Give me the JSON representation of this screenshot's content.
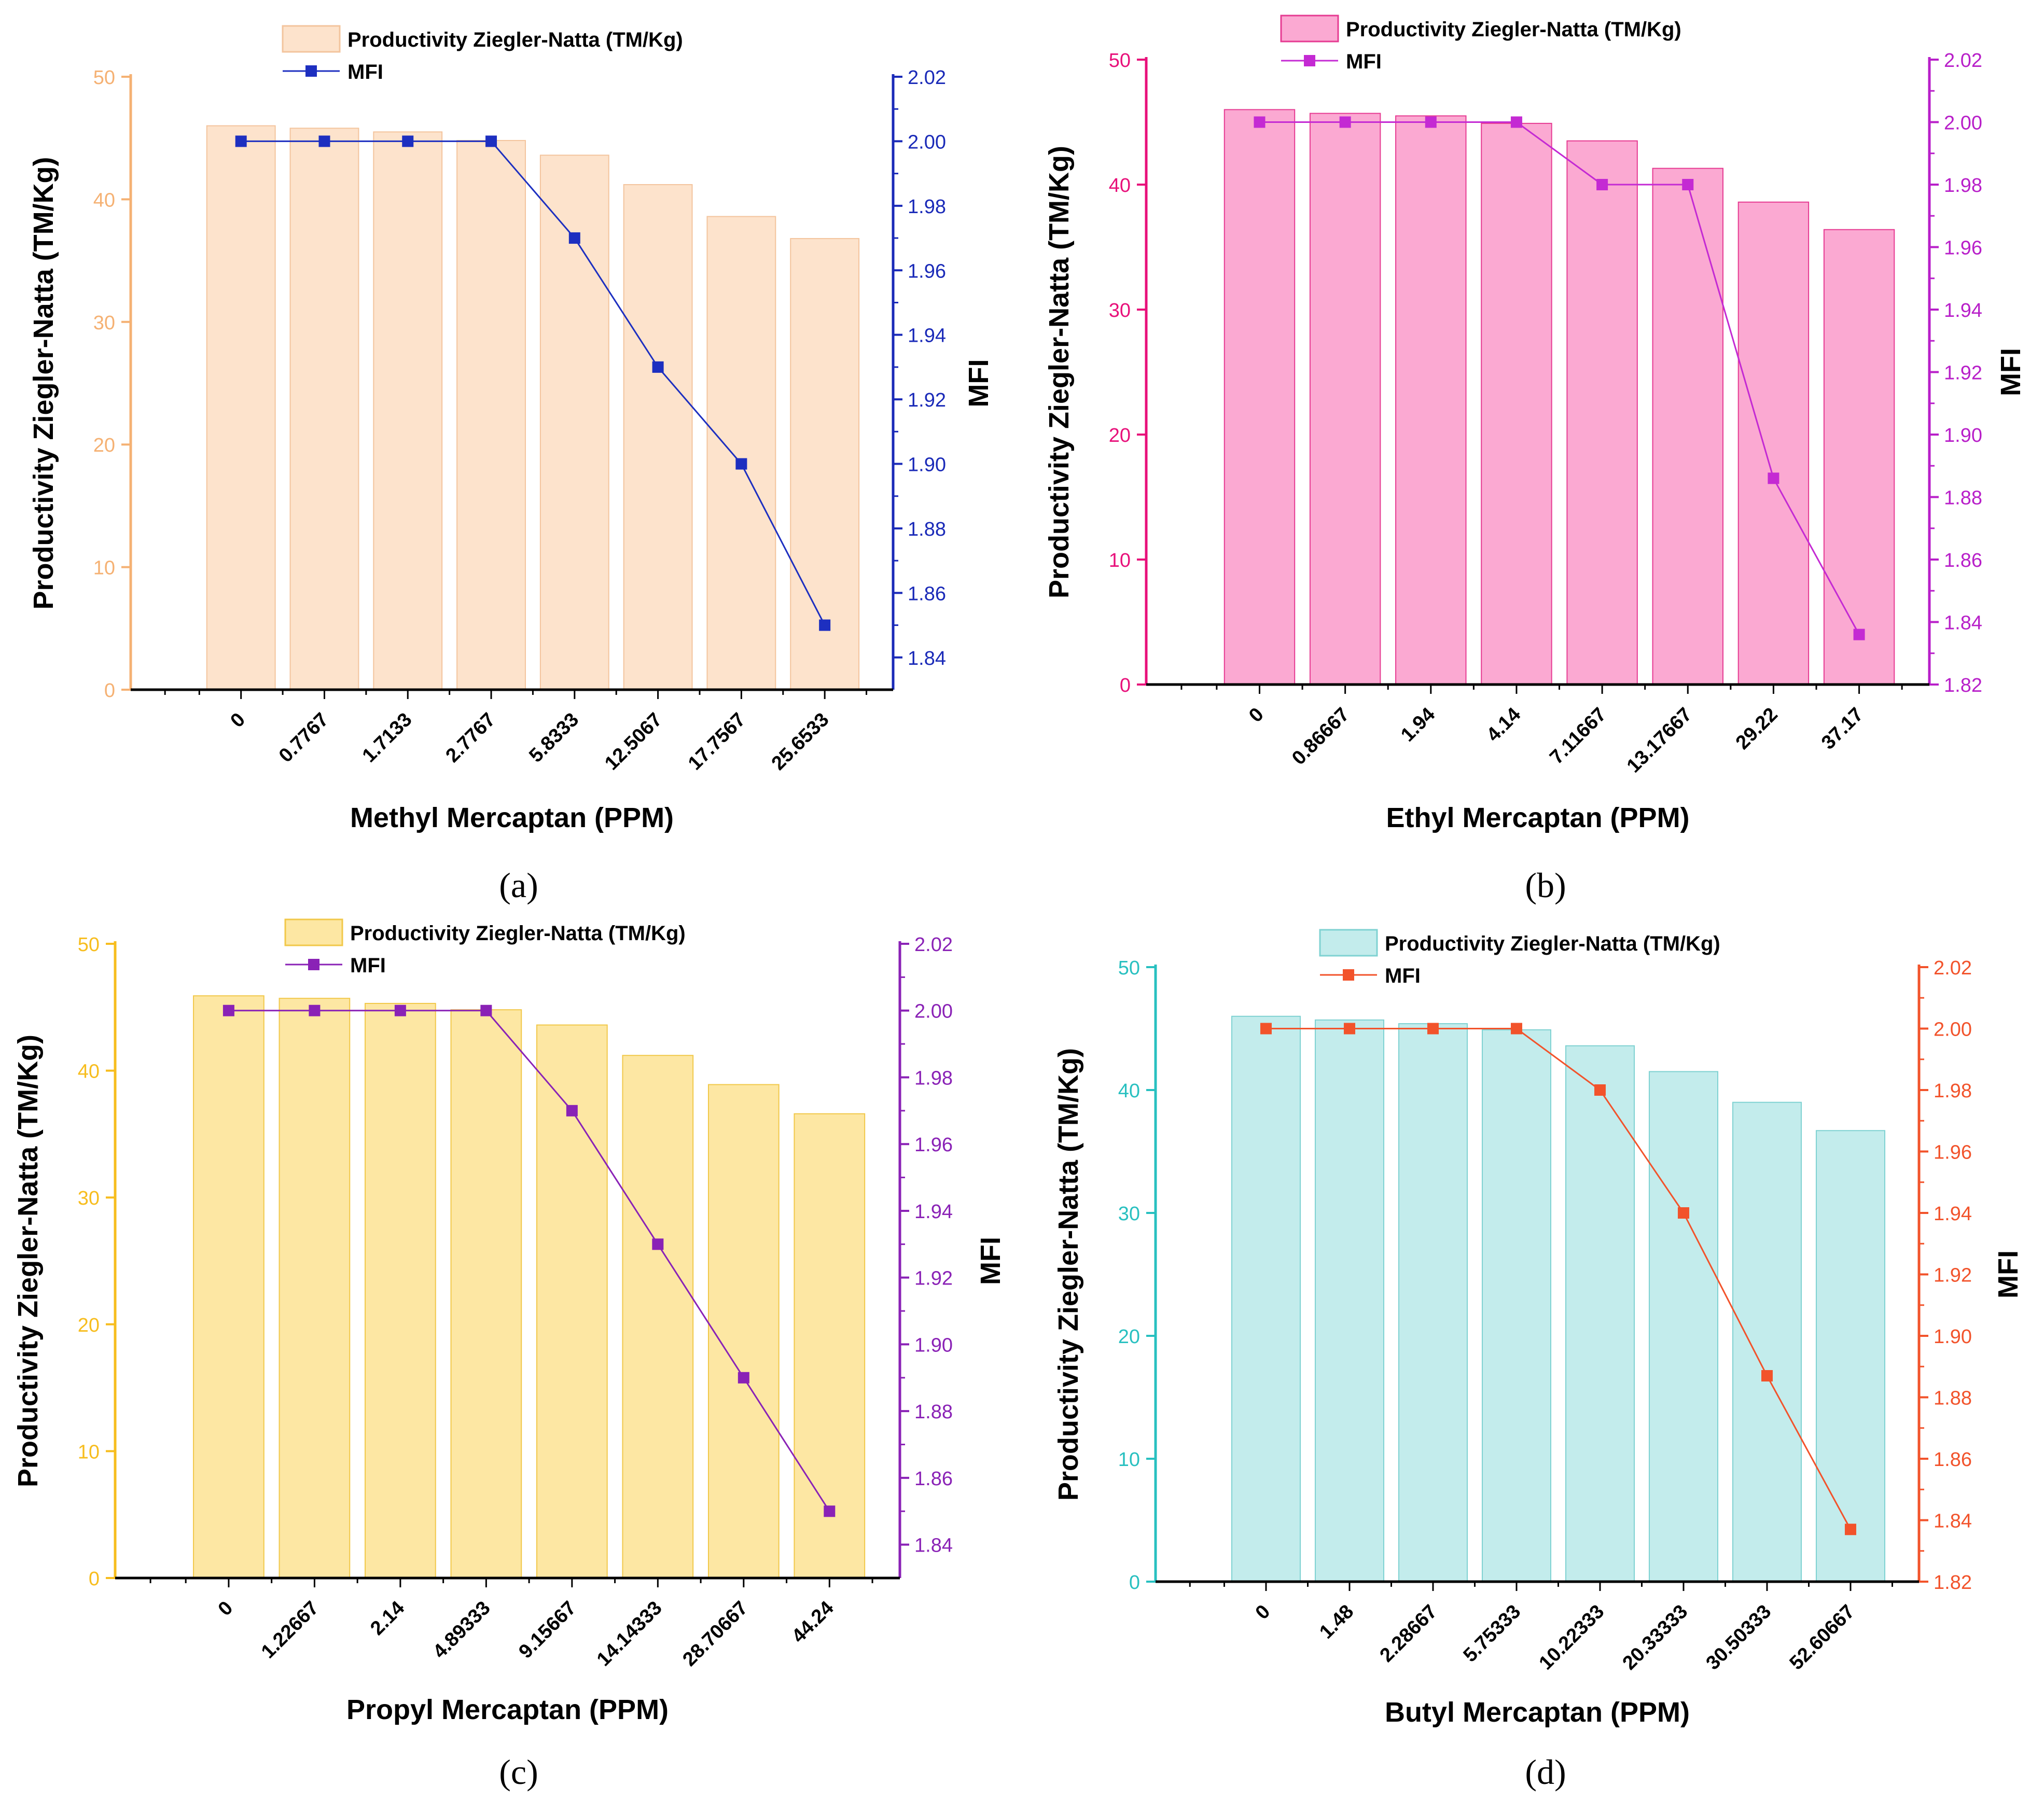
{
  "chart_data": [
    {
      "type": "bar+line",
      "panel_label": "(a)",
      "xlabel": "Methyl Mercaptan (PPM)",
      "ylabel_left": "Productivity  Ziegler-Natta (TM/Kg)",
      "ylabel_right": "MFI",
      "categories": [
        "0",
        "0.7767",
        "1.7133",
        "2.7767",
        "5.8333",
        "12.5067",
        "17.7567",
        "25.6533"
      ],
      "series": [
        {
          "name": "Productivity  Ziegler-Natta (TM/Kg)",
          "kind": "bar",
          "axis": "left",
          "values": [
            46.0,
            45.8,
            45.5,
            44.8,
            43.6,
            41.2,
            38.6,
            36.8
          ]
        },
        {
          "name": "MFI",
          "kind": "line",
          "axis": "right",
          "values": [
            2.0,
            2.0,
            2.0,
            2.0,
            1.97,
            1.93,
            1.9,
            1.85
          ]
        }
      ],
      "ylim_left": [
        0,
        50
      ],
      "yticks_left": [
        0,
        10,
        20,
        30,
        40,
        50
      ],
      "ylim_right": [
        1.83,
        2.02
      ],
      "yticks_right": [
        "1.84",
        "1.86",
        "1.88",
        "1.90",
        "1.92",
        "1.94",
        "1.96",
        "1.98",
        "2.00",
        "2.02"
      ],
      "colors": {
        "bar_fill": "#fde3cc",
        "bar_stroke": "#f3c49d",
        "line": "#1d2fc0",
        "left_axis": "#f5b173",
        "right_axis": "#1a2ab8"
      }
    },
    {
      "type": "bar+line",
      "panel_label": "(b)",
      "xlabel": "Ethyl Mercaptan (PPM)",
      "ylabel_left": "Productivity  Ziegler-Natta (TM/Kg)",
      "ylabel_right": "MFI",
      "categories": [
        "0",
        "0.86667",
        "1.94",
        "4.14",
        "7.11667",
        "13.17667",
        "29.22",
        "37.17"
      ],
      "series": [
        {
          "name": "Productivity  Ziegler-Natta (TM/Kg)",
          "kind": "bar",
          "axis": "left",
          "values": [
            46.0,
            45.7,
            45.5,
            44.9,
            43.5,
            41.3,
            38.6,
            36.4
          ]
        },
        {
          "name": "MFI",
          "kind": "line",
          "axis": "right",
          "values": [
            2.0,
            2.0,
            2.0,
            2.0,
            1.98,
            1.98,
            1.886,
            1.836
          ]
        }
      ],
      "ylim_left": [
        0,
        50
      ],
      "yticks_left": [
        0,
        10,
        20,
        30,
        40,
        50
      ],
      "ylim_right": [
        1.82,
        2.02
      ],
      "yticks_right": [
        "1.82",
        "1.84",
        "1.86",
        "1.88",
        "1.90",
        "1.92",
        "1.94",
        "1.96",
        "1.98",
        "2.00",
        "2.02"
      ],
      "colors": {
        "bar_fill": "#fba9d2",
        "bar_stroke": "#e63b92",
        "line": "#c42ad3",
        "left_axis": "#e8107a",
        "right_axis": "#b81fc9"
      }
    },
    {
      "type": "bar+line",
      "panel_label": "(c)",
      "xlabel": "Propyl Mercaptan (PPM)",
      "ylabel_left": "Productivity  Ziegler-Natta (TM/Kg)",
      "ylabel_right": "MFI",
      "categories": [
        "0",
        "1.22667",
        "2.14",
        "4.89333",
        "9.15667",
        "14.14333",
        "28.70667",
        "44.24"
      ],
      "series": [
        {
          "name": "Productivity  Ziegler-Natta (TM/Kg)",
          "kind": "bar",
          "axis": "left",
          "values": [
            45.9,
            45.7,
            45.3,
            44.8,
            43.6,
            41.2,
            38.9,
            36.6
          ]
        },
        {
          "name": "MFI",
          "kind": "line",
          "axis": "right",
          "values": [
            2.0,
            2.0,
            2.0,
            2.0,
            1.97,
            1.93,
            1.89,
            1.85
          ]
        }
      ],
      "ylim_left": [
        0,
        50
      ],
      "yticks_left": [
        0,
        10,
        20,
        30,
        40,
        50
      ],
      "ylim_right": [
        1.83,
        2.02
      ],
      "yticks_right": [
        "1.84",
        "1.86",
        "1.88",
        "1.90",
        "1.92",
        "1.94",
        "1.96",
        "1.98",
        "2.00",
        "2.02"
      ],
      "colors": {
        "bar_fill": "#fde7a3",
        "bar_stroke": "#f1c84a",
        "line": "#8a22b6",
        "left_axis": "#f7bd1e",
        "right_axis": "#8a22b6"
      }
    },
    {
      "type": "bar+line",
      "panel_label": "(d)",
      "xlabel": "Butyl Mercaptan (PPM)",
      "ylabel_left": "Productivity  Ziegler-Natta (TM/Kg)",
      "ylabel_right": "MFI",
      "categories": [
        "0",
        "1.48",
        "2.28667",
        "5.75333",
        "10.22333",
        "20.33333",
        "30.50333",
        "52.60667"
      ],
      "series": [
        {
          "name": "Productivity  Ziegler-Natta (TM/Kg)",
          "kind": "bar",
          "axis": "left",
          "values": [
            46.0,
            45.7,
            45.4,
            44.9,
            43.6,
            41.5,
            39.0,
            36.7
          ]
        },
        {
          "name": "MFI",
          "kind": "line",
          "axis": "right",
          "values": [
            2.0,
            2.0,
            2.0,
            2.0,
            1.98,
            1.94,
            1.887,
            1.837
          ]
        }
      ],
      "ylim_left": [
        0,
        50
      ],
      "yticks_left": [
        0,
        10,
        20,
        30,
        40,
        50
      ],
      "ylim_right": [
        1.82,
        2.02
      ],
      "yticks_right": [
        "1.82",
        "1.84",
        "1.86",
        "1.88",
        "1.90",
        "1.92",
        "1.94",
        "1.96",
        "1.98",
        "2.00",
        "2.02"
      ],
      "colors": {
        "bar_fill": "#c3ecec",
        "bar_stroke": "#7fd2d2",
        "line": "#f2532b",
        "left_axis": "#28c0c0",
        "right_axis": "#f2532b"
      }
    }
  ]
}
